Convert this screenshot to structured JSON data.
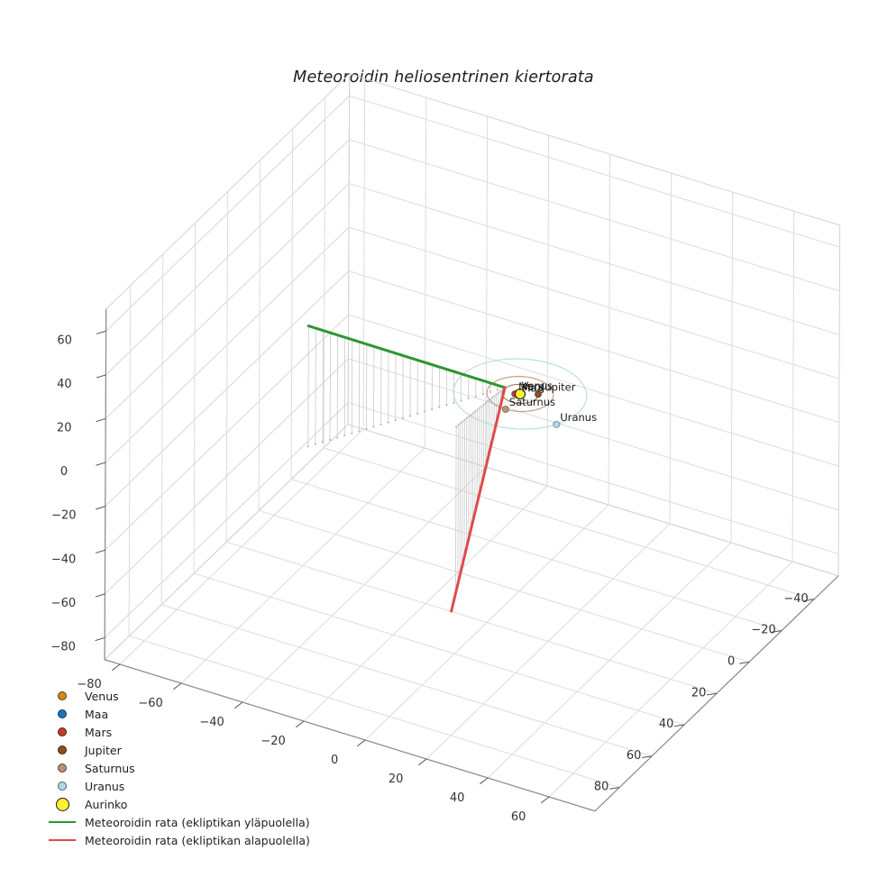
{
  "title": "Meteoroidin heliosentrinen kiertorata",
  "legend": {
    "items": [
      {
        "id": "venus",
        "label": "Venus",
        "swatch": "dot",
        "color": "#D2871E"
      },
      {
        "id": "maa",
        "label": "Maa",
        "swatch": "dot",
        "color": "#2273B5"
      },
      {
        "id": "mars",
        "label": "Mars",
        "swatch": "dot",
        "color": "#C43D2B"
      },
      {
        "id": "jupiter",
        "label": "Jupiter",
        "swatch": "dot",
        "color": "#8C4F21"
      },
      {
        "id": "saturnus",
        "label": "Saturnus",
        "swatch": "dot",
        "color": "#BE9270"
      },
      {
        "id": "uranus",
        "label": "Uranus",
        "swatch": "dot",
        "color": "#AFD8E8"
      },
      {
        "id": "aurinko",
        "label": "Aurinko",
        "swatch": "dot-large",
        "color": "#FFF230"
      },
      {
        "id": "rata-yla",
        "label": "Meteoroidin rata (ekliptikan yläpuolella)",
        "swatch": "line",
        "color": "#2E9632"
      },
      {
        "id": "rata-ala",
        "label": "Meteoroidin rata (ekliptikan alapuolella)",
        "swatch": "line",
        "color": "#E04B4B"
      }
    ]
  },
  "chart_data": {
    "type": "line",
    "subtype": "3d-orbit-plot",
    "title": "Meteoroidin heliosentrinen kiertorata",
    "axes": {
      "x_ticks": [
        -80,
        -60,
        -40,
        -20,
        0,
        20,
        40,
        60
      ],
      "y_ticks": [
        -40,
        -20,
        0,
        20,
        40,
        60,
        80
      ],
      "z_ticks": [
        -80,
        -60,
        -40,
        -20,
        0,
        20,
        40,
        60
      ],
      "xlim": [
        -85,
        75
      ],
      "ylim": [
        -55,
        95
      ],
      "zlim": [
        -90,
        70
      ],
      "grid": true,
      "xlabel": "",
      "ylabel": "",
      "zlabel": ""
    },
    "sun": {
      "name": "Aurinko",
      "position": [
        0,
        0,
        0
      ],
      "color": "#FFF230",
      "edge_color": "#1a1a1a",
      "marker_radius": 5.5
    },
    "planets": [
      {
        "name": "Venus",
        "label": "Venus",
        "color": "#D2871E",
        "orbit_radius": 0.72,
        "angle_deg": 180,
        "orbit_width": 0.8
      },
      {
        "name": "Maa",
        "label": "Maa",
        "color": "#2273B5",
        "orbit_radius": 1.0,
        "angle_deg": 100,
        "orbit_width": 0.8
      },
      {
        "name": "Mars",
        "label": "Mars",
        "color": "#C43D2B",
        "orbit_radius": 1.52,
        "angle_deg": 150,
        "orbit_width": 0.8
      },
      {
        "name": "Jupiter",
        "label": "Jupiter",
        "color": "#8C4F21",
        "orbit_radius": 5.2,
        "angle_deg": -29,
        "orbit_width": 1.0
      },
      {
        "name": "Saturnus",
        "label": "Saturnus",
        "color": "#BE9270",
        "orbit_radius": 9.58,
        "angle_deg": 88,
        "orbit_width": 1.2
      },
      {
        "name": "Uranus",
        "label": "Uranus",
        "color": "#AFD8E8",
        "orbit_radius": 19.2,
        "angle_deg": 29,
        "orbit_width": 1.2
      }
    ],
    "meteoroid": {
      "above_ecliptic": {
        "label": "Meteoroidin rata (ekliptikan yläpuolella)",
        "color": "#2E9632",
        "points": [
          [
            -39,
            57,
            55
          ],
          [
            -5.4,
            -0.8,
            0
          ]
        ],
        "n_stems": 28
      },
      "below_ecliptic": {
        "label": "Meteoroidin rata (ekliptikan alapuolella)",
        "color": "#E04B4B",
        "points": [
          [
            -5.4,
            -0.8,
            0
          ],
          [
            -7.6,
            27.6,
            -82.7
          ]
        ],
        "n_stems": 24,
        "stem_fraction": 0.92
      }
    },
    "legend_entries": [
      "Venus",
      "Maa",
      "Mars",
      "Jupiter",
      "Saturnus",
      "Uranus",
      "Aurinko",
      "Meteoroidin rata (ekliptikan yläpuolella)",
      "Meteoroidin rata (ekliptikan alapuolella)"
    ],
    "legend_position": "lower-left"
  },
  "style": {
    "grid_color": "#dcdcdc",
    "pane_edge_color": "#d3d3d3",
    "spine_color": "#8a8a8a",
    "tick_color": "#555555",
    "tick_label_color": "#333333",
    "stem_color": "#c9c9c9",
    "trace_dot_color": "#b8b8b8",
    "planet_label_color": "#1a1a1a"
  }
}
